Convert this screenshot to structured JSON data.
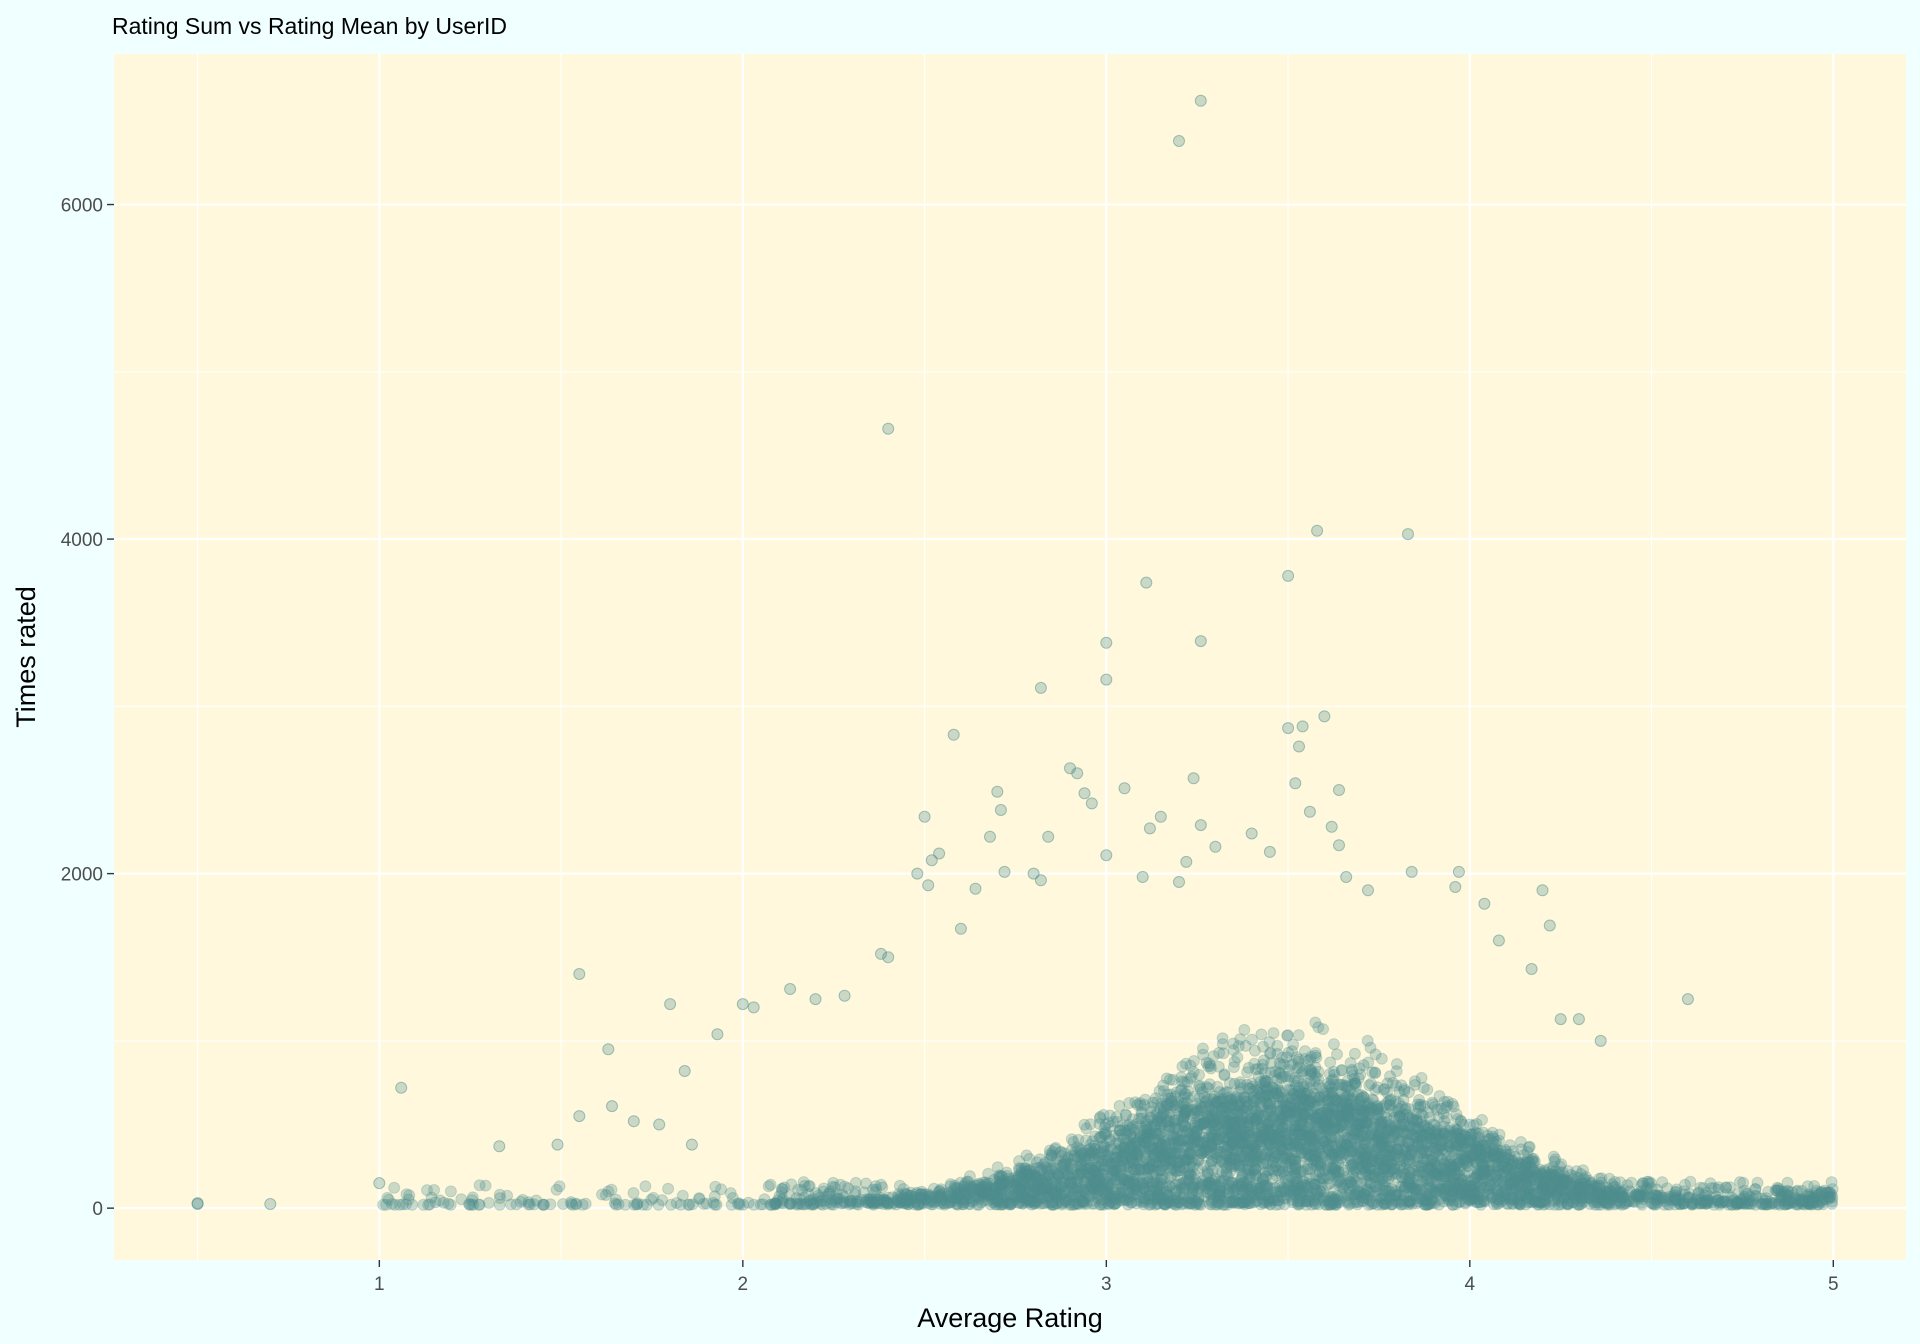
{
  "chart_data": {
    "type": "scatter",
    "title": "Rating Sum vs Rating Mean by UserID",
    "xlabel": "Average Rating",
    "ylabel": "Times rated",
    "xlim": [
      0.27,
      5.2
    ],
    "ylim": [
      -310,
      6900
    ],
    "x_ticks": [
      1,
      2,
      3,
      4,
      5
    ],
    "x_tick_labels": [
      "1",
      "2",
      "3",
      "4",
      "5"
    ],
    "y_ticks": [
      0,
      2000,
      4000,
      6000
    ],
    "y_tick_labels": [
      "0",
      "2000",
      "4000",
      "6000"
    ],
    "grid": true,
    "legend": "none",
    "colors": {
      "page_background": "#F0FFFF",
      "panel_background": "#FFF8DC",
      "point_fill": "#4F9090",
      "grid": "#FFFFFF"
    },
    "point_opacity": 0.3,
    "outliers": [
      {
        "x": 3.26,
        "y": 6620
      },
      {
        "x": 3.2,
        "y": 6380
      },
      {
        "x": 2.4,
        "y": 4660
      },
      {
        "x": 3.58,
        "y": 4050
      },
      {
        "x": 3.83,
        "y": 4030
      },
      {
        "x": 3.5,
        "y": 3780
      },
      {
        "x": 3.11,
        "y": 3740
      },
      {
        "x": 3.0,
        "y": 3380
      },
      {
        "x": 3.26,
        "y": 3390
      },
      {
        "x": 3.0,
        "y": 3160
      },
      {
        "x": 2.82,
        "y": 3110
      },
      {
        "x": 3.6,
        "y": 2940
      },
      {
        "x": 3.54,
        "y": 2880
      },
      {
        "x": 3.5,
        "y": 2870
      },
      {
        "x": 2.58,
        "y": 2830
      },
      {
        "x": 3.53,
        "y": 2760
      },
      {
        "x": 2.9,
        "y": 2630
      },
      {
        "x": 2.92,
        "y": 2600
      },
      {
        "x": 3.24,
        "y": 2570
      },
      {
        "x": 3.52,
        "y": 2540
      },
      {
        "x": 3.05,
        "y": 2510
      },
      {
        "x": 3.64,
        "y": 2500
      },
      {
        "x": 2.7,
        "y": 2490
      },
      {
        "x": 2.94,
        "y": 2480
      },
      {
        "x": 2.96,
        "y": 2420
      },
      {
        "x": 2.71,
        "y": 2380
      },
      {
        "x": 3.56,
        "y": 2370
      },
      {
        "x": 2.5,
        "y": 2340
      },
      {
        "x": 3.15,
        "y": 2340
      },
      {
        "x": 3.62,
        "y": 2280
      },
      {
        "x": 3.26,
        "y": 2290
      },
      {
        "x": 3.12,
        "y": 2270
      },
      {
        "x": 3.4,
        "y": 2240
      },
      {
        "x": 2.68,
        "y": 2220
      },
      {
        "x": 2.84,
        "y": 2220
      },
      {
        "x": 3.64,
        "y": 2170
      },
      {
        "x": 3.3,
        "y": 2160
      },
      {
        "x": 3.45,
        "y": 2130
      },
      {
        "x": 2.54,
        "y": 2120
      },
      {
        "x": 3.0,
        "y": 2110
      },
      {
        "x": 2.52,
        "y": 2080
      },
      {
        "x": 3.22,
        "y": 2070
      },
      {
        "x": 2.72,
        "y": 2010
      },
      {
        "x": 2.48,
        "y": 2000
      },
      {
        "x": 3.84,
        "y": 2010
      },
      {
        "x": 3.97,
        "y": 2010
      },
      {
        "x": 2.8,
        "y": 2000
      },
      {
        "x": 3.66,
        "y": 1980
      },
      {
        "x": 2.82,
        "y": 1960
      },
      {
        "x": 2.51,
        "y": 1930
      },
      {
        "x": 3.96,
        "y": 1920
      },
      {
        "x": 4.2,
        "y": 1900
      },
      {
        "x": 2.64,
        "y": 1910
      },
      {
        "x": 3.72,
        "y": 1900
      },
      {
        "x": 3.2,
        "y": 1950
      },
      {
        "x": 3.1,
        "y": 1980
      },
      {
        "x": 4.04,
        "y": 1820
      },
      {
        "x": 4.22,
        "y": 1690
      },
      {
        "x": 4.08,
        "y": 1600
      },
      {
        "x": 2.6,
        "y": 1670
      },
      {
        "x": 2.4,
        "y": 1500
      },
      {
        "x": 2.38,
        "y": 1520
      },
      {
        "x": 1.55,
        "y": 1400
      },
      {
        "x": 4.17,
        "y": 1430
      },
      {
        "x": 4.6,
        "y": 1250
      },
      {
        "x": 1.8,
        "y": 1220
      },
      {
        "x": 2.0,
        "y": 1220
      },
      {
        "x": 2.03,
        "y": 1200
      },
      {
        "x": 2.13,
        "y": 1310
      },
      {
        "x": 2.2,
        "y": 1250
      },
      {
        "x": 2.28,
        "y": 1270
      },
      {
        "x": 1.93,
        "y": 1040
      },
      {
        "x": 4.36,
        "y": 1000
      },
      {
        "x": 4.3,
        "y": 1130
      },
      {
        "x": 4.25,
        "y": 1130
      },
      {
        "x": 1.63,
        "y": 950
      },
      {
        "x": 1.84,
        "y": 820
      },
      {
        "x": 1.06,
        "y": 720
      },
      {
        "x": 1.64,
        "y": 610
      },
      {
        "x": 1.55,
        "y": 550
      },
      {
        "x": 1.7,
        "y": 520
      },
      {
        "x": 1.77,
        "y": 500
      },
      {
        "x": 1.33,
        "y": 370
      },
      {
        "x": 1.49,
        "y": 380
      },
      {
        "x": 1.86,
        "y": 380
      },
      {
        "x": 1.0,
        "y": 150
      },
      {
        "x": 0.5,
        "y": 30
      },
      {
        "x": 0.5,
        "y": 25
      },
      {
        "x": 0.7,
        "y": 25
      }
    ]
  }
}
